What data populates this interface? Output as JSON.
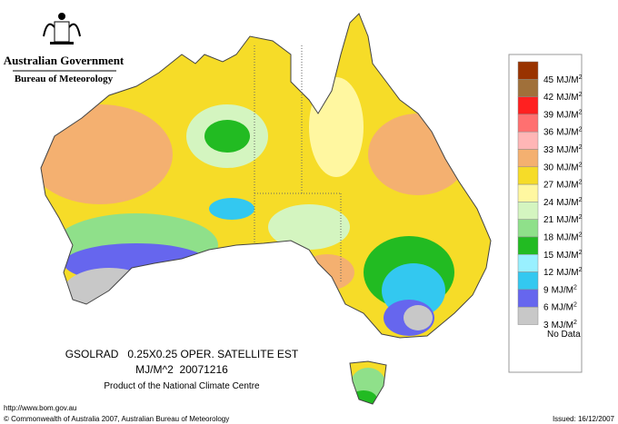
{
  "header": {
    "government": "Australian Government",
    "bureau": "Bureau of Meteorology"
  },
  "legend": {
    "unit": "MJ/M",
    "unit_sup": "2",
    "entries": [
      45,
      42,
      39,
      36,
      33,
      30,
      27,
      24,
      21,
      18,
      15,
      12,
      9,
      6,
      3
    ],
    "colors": [
      "#993300",
      "#a0703a",
      "#ff2020",
      "#ff7070",
      "#ffb6b6",
      "#f4b070",
      "#f6dc28",
      "#fff7a0",
      "#d4f5c0",
      "#8fe08a",
      "#22bb22",
      "#99f0ff",
      "#33c8f0",
      "#6666ee",
      "#c8c8c8"
    ],
    "no_data": "No Data"
  },
  "caption": {
    "line1": "GSOLRAD   0.25X0.25 OPER. SATELLITE EST",
    "line2": "MJ/M^2  20071216",
    "line3": "Product of the National Climate Centre"
  },
  "footer": {
    "url": "http://www.bom.gov.au",
    "copyright": "© Commonwealth of Australia 2007, Australian Bureau of Meteorology",
    "issued": "Issued: 16/12/2007"
  }
}
